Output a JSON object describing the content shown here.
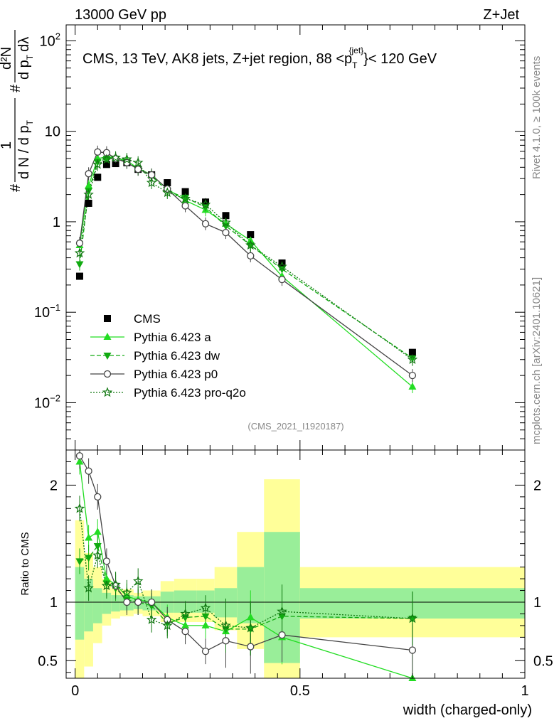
{
  "header": {
    "left_title": "13000 GeV pp",
    "right_title": "Z+Jet"
  },
  "side_labels": {
    "rivet": "Rivet 4.1.0, ≥ 100k events",
    "mcplots": "mcplots.cern.ch [arXiv:2401.10621]"
  },
  "chart_data": [
    {
      "type": "scatter",
      "title": "CMS, 13 TeV, AK8 jets, Z+jet region, 88 < p_T^{jet} < 120 GeV",
      "title_parts": {
        "main": "CMS, 13 TeV, AK8 jets, Z+jet region, 88 <p",
        "sub": "T",
        "sup": "{jet}",
        "tail": "}< 120 GeV"
      },
      "ylabel": "1/(dN/dpT) d²N/(dpT dλ)",
      "ylabel_parts": {
        "hash": "#",
        "one": "1",
        "dN": "d N / d p",
        "T": "T",
        "d2N": "d²N",
        "dpT": "d p",
        "dl": "dλ"
      },
      "yscale": "log",
      "ylim": [
        0.003,
        150
      ],
      "xlim": [
        -0.02,
        1.0
      ],
      "y_tick_labels": [
        {
          "value": 0.01,
          "base": "10",
          "exp": "−2"
        },
        {
          "value": 0.1,
          "base": "10",
          "exp": "−1"
        },
        {
          "value": 1,
          "base": "1",
          "exp": ""
        },
        {
          "value": 10,
          "base": "10",
          "exp": ""
        },
        {
          "value": 100,
          "base": "10",
          "exp": "2"
        }
      ],
      "watermark": "(CMS_2021_I1920187)",
      "legend_position": "bottom-left",
      "series": [
        {
          "name": "CMS",
          "style": "data",
          "color": "#000000",
          "x": [
            0.01,
            0.03,
            0.05,
            0.07,
            0.09,
            0.115,
            0.14,
            0.17,
            0.205,
            0.245,
            0.29,
            0.335,
            0.39,
            0.46,
            0.75
          ],
          "y": [
            0.25,
            1.6,
            3.1,
            4.3,
            4.4,
            4.5,
            3.8,
            3.3,
            2.7,
            2.15,
            1.65,
            1.17,
            0.72,
            0.35,
            0.036
          ]
        },
        {
          "name": "Pythia 6.423 a",
          "style": "triangle-up",
          "color": "#22dd22",
          "dash": "",
          "x": [
            0.01,
            0.03,
            0.05,
            0.07,
            0.09,
            0.115,
            0.14,
            0.17,
            0.205,
            0.245,
            0.29,
            0.335,
            0.39,
            0.46,
            0.75
          ],
          "y": [
            0.55,
            2.5,
            5.0,
            5.2,
            5.1,
            4.7,
            3.9,
            3.3,
            2.3,
            1.72,
            1.35,
            0.95,
            0.62,
            0.25,
            0.015
          ]
        },
        {
          "name": "Pythia 6.423 dw",
          "style": "triangle-down",
          "color": "#11aa11",
          "dash": "6,3",
          "x": [
            0.01,
            0.03,
            0.05,
            0.07,
            0.09,
            0.115,
            0.14,
            0.17,
            0.205,
            0.245,
            0.29,
            0.335,
            0.39,
            0.46,
            0.75
          ],
          "y": [
            0.34,
            2.2,
            4.6,
            5.0,
            5.0,
            4.6,
            3.8,
            3.2,
            2.2,
            1.85,
            1.45,
            0.9,
            0.55,
            0.3,
            0.031
          ]
        },
        {
          "name": "Pythia 6.423 p0",
          "style": "circle-open",
          "color": "#444444",
          "dash": "",
          "x": [
            0.01,
            0.03,
            0.05,
            0.07,
            0.09,
            0.115,
            0.14,
            0.17,
            0.205,
            0.245,
            0.29,
            0.335,
            0.39,
            0.46,
            0.75
          ],
          "y": [
            0.58,
            3.4,
            5.9,
            5.8,
            5.0,
            4.5,
            3.8,
            3.3,
            2.3,
            1.5,
            0.95,
            0.76,
            0.42,
            0.23,
            0.02
          ]
        },
        {
          "name": "Pythia 6.423 pro-q2o",
          "style": "star-open",
          "color": "#117711",
          "dash": "2,2",
          "x": [
            0.01,
            0.03,
            0.05,
            0.07,
            0.09,
            0.115,
            0.14,
            0.17,
            0.205,
            0.245,
            0.29,
            0.335,
            0.39,
            0.46,
            0.75
          ],
          "y": [
            0.45,
            2.0,
            4.3,
            4.9,
            5.1,
            4.9,
            4.5,
            2.7,
            2.1,
            1.8,
            1.55,
            0.98,
            0.55,
            0.32,
            0.03
          ]
        }
      ]
    },
    {
      "type": "line",
      "ylabel": "Ratio to CMS",
      "xlabel": "width (charged-only)",
      "ylim": [
        0.35,
        2.3
      ],
      "xlim": [
        -0.02,
        1.0
      ],
      "x_tick_labels": [
        {
          "value": 0,
          "label": "0"
        },
        {
          "value": 0.5,
          "label": "0.5"
        },
        {
          "value": 1,
          "label": "1"
        }
      ],
      "y_tick_labels": [
        {
          "value": 0.5,
          "label": "0.5"
        },
        {
          "value": 1,
          "label": "1"
        },
        {
          "value": 2,
          "label": "2"
        }
      ],
      "bands": {
        "bin_edges": [
          0,
          0.02,
          0.04,
          0.06,
          0.08,
          0.1,
          0.13,
          0.15,
          0.19,
          0.22,
          0.27,
          0.31,
          0.36,
          0.42,
          0.5,
          1.0
        ],
        "inner_colour": "#99ee99",
        "outer_colour": "#ffff99",
        "inner_lo": [
          0.68,
          0.75,
          0.82,
          0.9,
          0.92,
          0.93,
          0.94,
          0.93,
          0.91,
          0.91,
          0.91,
          0.87,
          0.82,
          0.48,
          0.86
        ],
        "inner_hi": [
          1.3,
          1.2,
          1.12,
          1.08,
          1.06,
          1.06,
          1.05,
          1.05,
          1.09,
          1.1,
          1.1,
          1.12,
          1.3,
          1.6,
          1.12
        ],
        "outer_lo": [
          0.35,
          0.45,
          0.65,
          0.8,
          0.86,
          0.88,
          0.9,
          0.88,
          0.83,
          0.83,
          0.83,
          0.76,
          0.6,
          0.3,
          0.7
        ],
        "outer_hi": [
          1.7,
          1.42,
          1.3,
          1.2,
          1.12,
          1.11,
          1.08,
          1.1,
          1.18,
          1.2,
          1.2,
          1.3,
          1.6,
          2.05,
          1.3
        ]
      },
      "series": [
        {
          "name": "Pythia 6.423 a",
          "style": "triangle-up",
          "color": "#22dd22",
          "dash": "",
          "x": [
            0.01,
            0.03,
            0.05,
            0.07,
            0.09,
            0.115,
            0.14,
            0.17,
            0.205,
            0.245,
            0.29,
            0.335,
            0.39,
            0.46,
            0.75
          ],
          "y": [
            2.2,
            1.55,
            1.6,
            1.2,
            1.15,
            1.05,
            1.02,
            1.0,
            0.87,
            0.8,
            0.8,
            0.75,
            0.87,
            0.7,
            0.35
          ]
        },
        {
          "name": "Pythia 6.423 dw",
          "style": "triangle-down",
          "color": "#11aa11",
          "dash": "6,3",
          "x": [
            0.01,
            0.03,
            0.05,
            0.07,
            0.09,
            0.115,
            0.14,
            0.17,
            0.205,
            0.245,
            0.29,
            0.335,
            0.39,
            0.46,
            0.75
          ],
          "y": [
            1.35,
            1.38,
            1.48,
            1.16,
            1.12,
            1.02,
            1.0,
            0.97,
            0.82,
            0.87,
            0.88,
            0.77,
            0.77,
            0.88,
            0.86
          ]
        },
        {
          "name": "Pythia 6.423 p0",
          "style": "circle-open",
          "color": "#444444",
          "dash": "",
          "x": [
            0.01,
            0.03,
            0.05,
            0.07,
            0.09,
            0.115,
            0.14,
            0.17,
            0.205,
            0.245,
            0.29,
            0.335,
            0.39,
            0.46,
            0.75
          ],
          "y": [
            2.25,
            2.12,
            1.9,
            1.35,
            1.14,
            1.0,
            1.0,
            1.0,
            0.85,
            0.75,
            0.58,
            0.67,
            0.62,
            0.72,
            0.59
          ]
        },
        {
          "name": "Pythia 6.423 pro-q2o",
          "style": "star-open",
          "color": "#117711",
          "dash": "2,2",
          "x": [
            0.01,
            0.03,
            0.05,
            0.07,
            0.09,
            0.115,
            0.14,
            0.17,
            0.205,
            0.245,
            0.29,
            0.335,
            0.39,
            0.46,
            0.75
          ],
          "y": [
            1.8,
            1.12,
            1.4,
            1.14,
            1.15,
            1.08,
            1.18,
            0.85,
            0.8,
            0.9,
            0.95,
            0.8,
            0.78,
            0.92,
            0.86
          ]
        }
      ]
    }
  ]
}
